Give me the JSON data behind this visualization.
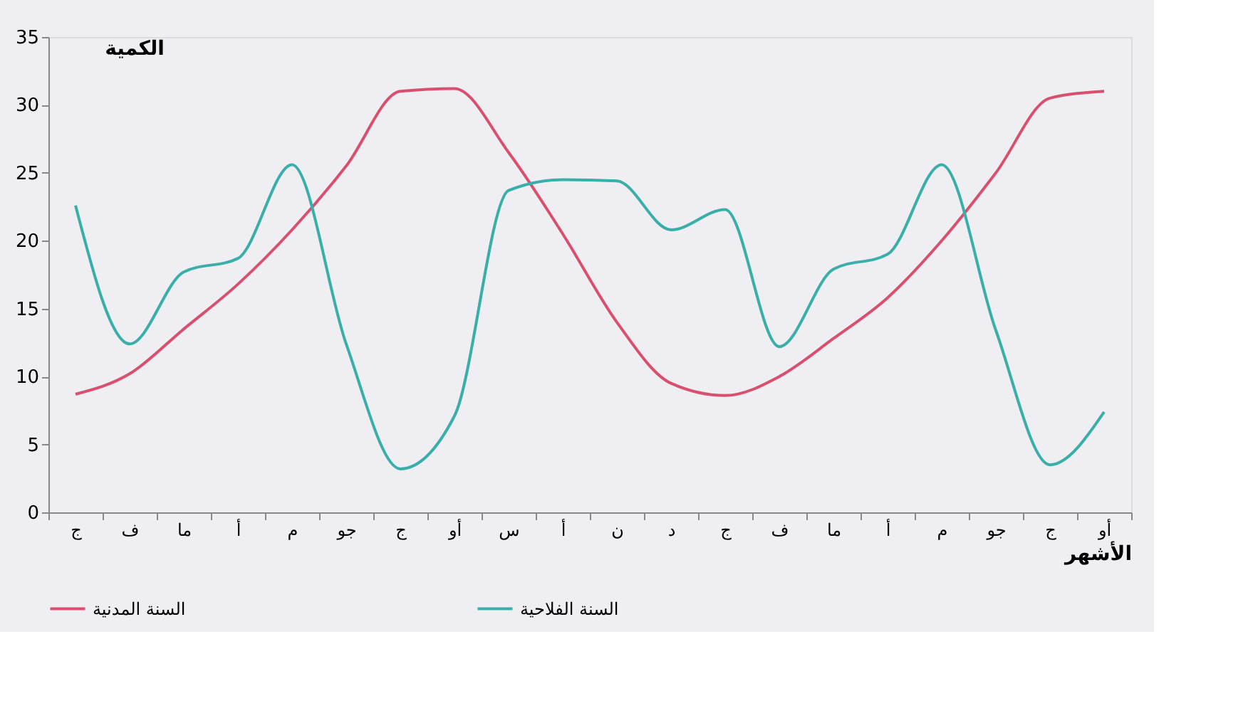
{
  "chart_data": {
    "type": "line",
    "xlabel": "الأشهر",
    "ylabel": "الكمية",
    "categories": [
      "ج",
      "ف",
      "ما",
      "أ",
      "م",
      "جو",
      "ج",
      "أو",
      "س",
      "أ",
      "ن",
      "د",
      "ج",
      "ف",
      "ما",
      "أ",
      "م",
      "جو",
      "ج",
      "أو"
    ],
    "series": [
      {
        "name": "السنة المدنية",
        "color": "#d9506e",
        "values": [
          8.7,
          10.2,
          13.5,
          16.8,
          20.8,
          25.5,
          31,
          31.2,
          26.5,
          20.5,
          14,
          9.5,
          8.6,
          10,
          12.8,
          15.8,
          20,
          25,
          30.5,
          31
        ]
      },
      {
        "name": "السنة الفلاحية",
        "color": "#3aaea8",
        "values": [
          22.6,
          12.4,
          17.7,
          18.7,
          25.6,
          12.4,
          3.2,
          7.1,
          23.7,
          24.5,
          24.4,
          20.8,
          22.3,
          12.2,
          17.9,
          19,
          25.6,
          13.4,
          3.5,
          7.4
        ]
      }
    ],
    "ylim": [
      0,
      35
    ],
    "yticks": [
      0,
      5,
      10,
      15,
      20,
      25,
      30,
      35
    ],
    "grid": false,
    "legend": "bottom",
    "marker": "none",
    "line_style": "solid"
  }
}
